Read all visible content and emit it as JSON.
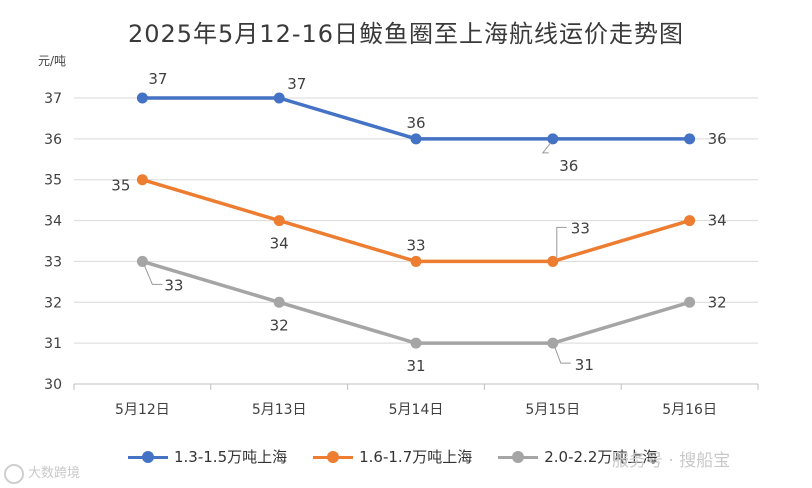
{
  "title": "2025年5月12-16日鲅鱼圈至上海航线运价走势图",
  "unit": "元/吨",
  "chart_data": {
    "type": "line",
    "title": "2025年5月12-16日鲅鱼圈至上海航线运价走势图",
    "ylabel": "元/吨",
    "xlabel": "",
    "categories": [
      "5月12日",
      "5月13日",
      "5月14日",
      "5月15日",
      "5月16日"
    ],
    "ylim": [
      30,
      37
    ],
    "yticks": [
      30,
      31,
      32,
      33,
      34,
      35,
      36,
      37
    ],
    "grid": true,
    "legend_position": "bottom",
    "series": [
      {
        "name": "1.3-1.5万吨上海",
        "color": "#4472C4",
        "values": [
          37,
          37,
          36,
          36,
          36
        ]
      },
      {
        "name": "1.6-1.7万吨上海",
        "color": "#ED7D31",
        "values": [
          35,
          34,
          33,
          33,
          34
        ]
      },
      {
        "name": "2.0-2.2万吨上海",
        "color": "#A5A5A5",
        "values": [
          33,
          32,
          31,
          31,
          32
        ]
      }
    ]
  },
  "watermark": {
    "left": "大数跨境",
    "right": "服务号 · 搜船宝"
  }
}
